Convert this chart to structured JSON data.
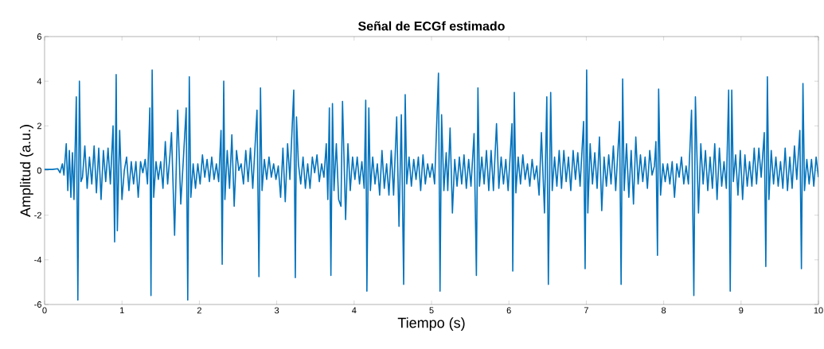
{
  "chart_data": {
    "type": "line",
    "title": "Señal de ECGf estimado",
    "xlabel": "Tiempo (s)",
    "ylabel": "Amplitud (a.u.)",
    "xlim": [
      0,
      10
    ],
    "ylim": [
      -6,
      6
    ],
    "xticks": [
      0,
      1,
      2,
      3,
      4,
      5,
      6,
      7,
      8,
      9,
      10
    ],
    "yticks": [
      -6,
      -4,
      -2,
      0,
      2,
      4,
      6
    ],
    "grid": false,
    "marker": "none",
    "line_style": "solid",
    "series": [
      {
        "color": "#0072bd",
        "x": [
          0,
          0.1,
          0.17,
          0.2,
          0.23,
          0.25,
          0.28,
          0.3,
          0.32,
          0.34,
          0.36,
          0.38,
          0.41,
          0.43,
          0.45,
          0.47,
          0.49,
          0.52,
          0.55,
          0.58,
          0.61,
          0.64,
          0.67,
          0.7,
          0.73,
          0.76,
          0.79,
          0.82,
          0.85,
          0.885,
          0.905,
          0.925,
          0.94,
          0.97,
          1.0,
          1.03,
          1.06,
          1.09,
          1.12,
          1.15,
          1.18,
          1.21,
          1.24,
          1.27,
          1.3,
          1.33,
          1.36,
          1.375,
          1.39,
          1.41,
          1.44,
          1.47,
          1.5,
          1.53,
          1.56,
          1.59,
          1.62,
          1.64,
          1.68,
          1.72,
          1.76,
          1.79,
          1.83,
          1.85,
          1.87,
          1.89,
          1.92,
          1.95,
          1.98,
          2.01,
          2.04,
          2.07,
          2.1,
          2.13,
          2.16,
          2.19,
          2.22,
          2.25,
          2.28,
          2.295,
          2.315,
          2.33,
          2.36,
          2.39,
          2.42,
          2.45,
          2.48,
          2.51,
          2.54,
          2.57,
          2.6,
          2.63,
          2.66,
          2.69,
          2.745,
          2.77,
          2.79,
          2.81,
          2.84,
          2.87,
          2.9,
          2.93,
          2.96,
          2.99,
          3.02,
          3.05,
          3.08,
          3.11,
          3.14,
          3.17,
          3.22,
          3.24,
          3.255,
          3.28,
          3.31,
          3.34,
          3.37,
          3.4,
          3.43,
          3.46,
          3.49,
          3.52,
          3.55,
          3.58,
          3.61,
          3.64,
          3.66,
          3.68,
          3.7,
          3.72,
          3.74,
          3.77,
          3.8,
          3.83,
          3.85,
          3.89,
          3.92,
          3.95,
          3.98,
          4.01,
          4.04,
          4.07,
          4.1,
          4.13,
          4.15,
          4.165,
          4.19,
          4.21,
          4.24,
          4.27,
          4.3,
          4.33,
          4.36,
          4.39,
          4.42,
          4.45,
          4.48,
          4.51,
          4.55,
          4.58,
          4.61,
          4.64,
          4.66,
          4.68,
          4.71,
          4.74,
          4.77,
          4.8,
          4.83,
          4.86,
          4.89,
          4.92,
          4.95,
          4.98,
          5.01,
          5.04,
          5.09,
          5.11,
          5.13,
          5.16,
          5.19,
          5.21,
          5.24,
          5.27,
          5.3,
          5.33,
          5.36,
          5.39,
          5.42,
          5.45,
          5.48,
          5.51,
          5.55,
          5.58,
          5.6,
          5.62,
          5.65,
          5.68,
          5.71,
          5.74,
          5.77,
          5.8,
          5.84,
          5.87,
          5.9,
          5.93,
          5.96,
          5.99,
          6.04,
          6.05,
          6.07,
          6.09,
          6.12,
          6.15,
          6.18,
          6.21,
          6.24,
          6.27,
          6.3,
          6.33,
          6.36,
          6.39,
          6.42,
          6.46,
          6.49,
          6.51,
          6.54,
          6.56,
          6.59,
          6.62,
          6.65,
          6.68,
          6.71,
          6.74,
          6.77,
          6.8,
          6.83,
          6.86,
          6.89,
          6.92,
          6.965,
          6.985,
          7.005,
          7.02,
          7.05,
          7.08,
          7.11,
          7.14,
          7.17,
          7.2,
          7.23,
          7.26,
          7.29,
          7.32,
          7.35,
          7.38,
          7.43,
          7.45,
          7.47,
          7.49,
          7.52,
          7.55,
          7.58,
          7.61,
          7.64,
          7.67,
          7.7,
          7.73,
          7.76,
          7.79,
          7.82,
          7.85,
          7.88,
          7.9,
          7.92,
          7.935,
          7.96,
          7.99,
          8.02,
          8.05,
          8.08,
          8.11,
          8.14,
          8.17,
          8.2,
          8.23,
          8.26,
          8.29,
          8.32,
          8.36,
          8.39,
          8.41,
          8.45,
          8.48,
          8.51,
          8.54,
          8.57,
          8.6,
          8.63,
          8.66,
          8.69,
          8.72,
          8.75,
          8.78,
          8.81,
          8.84,
          8.86,
          8.88,
          8.9,
          8.93,
          8.96,
          8.99,
          9.02,
          9.05,
          9.08,
          9.11,
          9.14,
          9.17,
          9.2,
          9.23,
          9.26,
          9.3,
          9.32,
          9.34,
          9.36,
          9.39,
          9.42,
          9.45,
          9.48,
          9.51,
          9.54,
          9.57,
          9.6,
          9.63,
          9.66,
          9.69,
          9.72,
          9.76,
          9.78,
          9.8,
          9.82,
          9.85,
          9.88,
          9.91,
          9.94,
          9.97,
          10.0
        ],
        "values": [
          0.05,
          0.05,
          0.08,
          -0.1,
          0.3,
          -0.2,
          1.2,
          -0.9,
          0.9,
          -1.2,
          0.8,
          -1.3,
          3.3,
          -5.8,
          4.0,
          -0.5,
          -0.3,
          1.1,
          -0.8,
          0.6,
          -0.6,
          1.1,
          -1.0,
          1.0,
          -1.3,
          0.9,
          -0.5,
          1.0,
          -0.6,
          2.0,
          -3.2,
          4.3,
          -2.7,
          1.8,
          -1.3,
          0.0,
          0.6,
          -0.9,
          0.4,
          -0.6,
          0.4,
          -1.2,
          0.4,
          -0.1,
          0.5,
          -0.6,
          2.8,
          -5.6,
          4.5,
          -1.2,
          0.4,
          -0.4,
          0.4,
          -0.8,
          1.3,
          -0.6,
          0.7,
          1.7,
          -2.9,
          2.7,
          -1.5,
          0.3,
          2.8,
          -5.8,
          4.2,
          -1.2,
          0.3,
          -0.8,
          0.3,
          -0.6,
          0.7,
          -0.3,
          0.5,
          -0.5,
          0.6,
          -0.4,
          0.3,
          -0.5,
          1.8,
          -4.2,
          4.0,
          -1.3,
          0.9,
          -0.8,
          1.6,
          -1.6,
          0.9,
          0.0,
          0.3,
          -0.6,
          0.9,
          -0.5,
          1.0,
          -0.8,
          2.7,
          -4.75,
          3.7,
          -0.9,
          0.5,
          -0.4,
          0.6,
          -0.3,
          0.3,
          -0.4,
          0.2,
          -1.2,
          1.0,
          -1.4,
          1.2,
          -0.4,
          3.6,
          -4.8,
          2.4,
          0.3,
          -0.6,
          0.6,
          -0.8,
          0.3,
          -0.8,
          0.6,
          -0.1,
          0.7,
          -0.5,
          0.3,
          -0.3,
          1.2,
          -1.3,
          2.8,
          -4.7,
          3.0,
          -0.9,
          1.2,
          -1.3,
          -1.6,
          3.1,
          -2.2,
          1.2,
          -0.9,
          0.6,
          -0.4,
          0.6,
          -0.6,
          0.4,
          -0.8,
          3.15,
          -5.4,
          2.8,
          -0.9,
          0.6,
          -0.6,
          0.3,
          -1.1,
          0.9,
          -0.8,
          0.3,
          -1.1,
          0.9,
          -1.1,
          2.4,
          -2.5,
          2.5,
          -5.1,
          3.4,
          -0.6,
          0.6,
          -0.7,
          0.5,
          -0.4,
          0.6,
          -0.9,
          0.7,
          -0.6,
          0.3,
          -0.3,
          0.3,
          -0.6,
          4.36,
          -5.4,
          2.5,
          -0.9,
          0.8,
          -0.9,
          1.9,
          -1.9,
          0.5,
          -0.7,
          0.6,
          -0.6,
          0.7,
          -0.8,
          0.5,
          -0.7,
          1.65,
          -4.7,
          3.7,
          -0.7,
          0.6,
          -0.6,
          0.9,
          -0.9,
          0.9,
          -0.9,
          2.1,
          -0.8,
          0.6,
          -0.6,
          0.5,
          -0.9,
          2.1,
          -4.5,
          3.5,
          -1.0,
          0.6,
          -0.6,
          0.7,
          -0.4,
          0.3,
          -0.7,
          0.5,
          -0.4,
          0.2,
          -1.1,
          1.7,
          -1.9,
          3.3,
          -5.1,
          3.5,
          -0.9,
          0.6,
          -0.7,
          0.9,
          -0.8,
          0.9,
          -0.5,
          0.6,
          -0.9,
          0.9,
          -0.4,
          0.8,
          -0.7,
          2.2,
          -4.4,
          4.5,
          -1.9,
          1.2,
          -0.6,
          0.8,
          -0.8,
          1.5,
          -1.8,
          0.6,
          -0.7,
          0.7,
          -0.6,
          1.1,
          -0.9,
          2.2,
          -5.1,
          4.1,
          -0.9,
          1.2,
          -1.2,
          0.9,
          -1.5,
          1.5,
          -0.6,
          0.7,
          -0.5,
          0.6,
          -0.8,
          0.9,
          -0.2,
          0.2,
          1.3,
          -3.8,
          3.65,
          -1.1,
          0.3,
          -0.5,
          0.3,
          -0.6,
          0.4,
          -1.2,
          0.3,
          -0.3,
          0.6,
          -0.6,
          0.2,
          -0.6,
          2.7,
          -5.6,
          3.3,
          -1.9,
          1.2,
          -0.6,
          0.9,
          -0.9,
          0.6,
          -0.8,
          1.2,
          -1.3,
          1.0,
          -0.7,
          0.4,
          -0.8,
          3.6,
          -5.4,
          3.6,
          -0.5,
          0.7,
          -1.1,
          0.9,
          -1.3,
          0.7,
          -0.7,
          0.4,
          -0.7,
          1.0,
          -0.6,
          1.0,
          -0.3,
          1.7,
          -4.3,
          4.2,
          -1.3,
          0.9,
          -0.6,
          0.6,
          -0.7,
          0.4,
          -0.8,
          1.0,
          -0.9,
          0.6,
          -0.8,
          1.1,
          -0.4,
          1.8,
          -4.4,
          3.9,
          -0.9,
          0.5,
          -0.6,
          0.5,
          -0.7,
          0.6,
          -0.3
        ]
      }
    ]
  }
}
